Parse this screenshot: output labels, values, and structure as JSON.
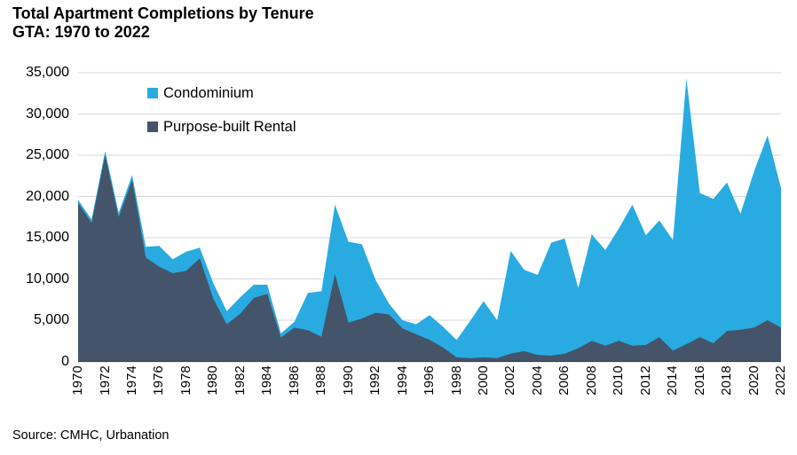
{
  "header": {
    "title_line1": "Total Apartment Completions by Tenure",
    "title_line2": "GTA: 1970 to 2022"
  },
  "legend": [
    {
      "label": "Condominium",
      "series": "condominium"
    },
    {
      "label": "Purpose-built Rental",
      "series": "purpose_built_rental"
    }
  ],
  "source": "Source: CMHC, Urbanation",
  "colors": {
    "condominium": "#29ABE2",
    "purpose_built_rental": "#44546A",
    "gridline": "#D9D9D9",
    "axis": "#404040",
    "text": "#000000",
    "background": "#FFFFFF"
  },
  "chart_data": {
    "type": "area",
    "stacked": true,
    "title": "Total Apartment Completions by Tenure",
    "subtitle": "GTA: 1970 to 2022",
    "xlabel": "",
    "ylabel": "",
    "grid": "horizontal",
    "legend_position": "top-left-inside",
    "ylim": [
      0,
      35000
    ],
    "x": [
      1970,
      1971,
      1972,
      1973,
      1974,
      1975,
      1976,
      1977,
      1978,
      1979,
      1980,
      1981,
      1982,
      1983,
      1984,
      1985,
      1986,
      1987,
      1988,
      1989,
      1990,
      1991,
      1992,
      1993,
      1994,
      1995,
      1996,
      1997,
      1998,
      1999,
      2000,
      2001,
      2002,
      2003,
      2004,
      2005,
      2006,
      2007,
      2008,
      2009,
      2010,
      2011,
      2012,
      2013,
      2014,
      2015,
      2016,
      2017,
      2018,
      2019,
      2020,
      2021,
      2022
    ],
    "series": [
      {
        "name": "Condominium",
        "values": [
          400,
          400,
          500,
          500,
          600,
          1300,
          2500,
          1700,
          2300,
          1300,
          1900,
          1600,
          2000,
          1600,
          1100,
          500,
          700,
          4500,
          5500,
          8400,
          9800,
          9000,
          4000,
          1300,
          1000,
          1200,
          3000,
          2500,
          2100,
          4500,
          6800,
          4600,
          12450,
          9850,
          9700,
          13700,
          13950,
          7300,
          12900,
          11600,
          13600,
          17100,
          13300,
          14150,
          13400,
          32200,
          17450,
          17500,
          18000,
          14050,
          18900,
          22400,
          16900
        ]
      },
      {
        "name": "Purpose-built Rental",
        "values": [
          19200,
          16800,
          25000,
          17500,
          22000,
          12600,
          11500,
          10700,
          11000,
          12500,
          7600,
          4500,
          5800,
          7700,
          8200,
          2900,
          4100,
          3800,
          3000,
          10600,
          4700,
          5200,
          5900,
          5700,
          4000,
          3300,
          2600,
          1700,
          500,
          400,
          500,
          400,
          950,
          1250,
          800,
          700,
          950,
          1600,
          2500,
          1900,
          2500,
          1900,
          2000,
          2950,
          1300,
          2100,
          2950,
          2200,
          3700,
          3850,
          4100,
          5000,
          4100
        ]
      }
    ],
    "y_tick_labels": [
      "0",
      "5,000",
      "10,000",
      "15,000",
      "20,000",
      "25,000",
      "30,000",
      "35,000"
    ],
    "x_tick_labels": [
      "1970",
      "1972",
      "1974",
      "1976",
      "1978",
      "1980",
      "1982",
      "1984",
      "1986",
      "1988",
      "1990",
      "1992",
      "1994",
      "1996",
      "1998",
      "2000",
      "2002",
      "2004",
      "2006",
      "2008",
      "2010",
      "2012",
      "2014",
      "2016",
      "2018",
      "2020",
      "2022"
    ]
  }
}
